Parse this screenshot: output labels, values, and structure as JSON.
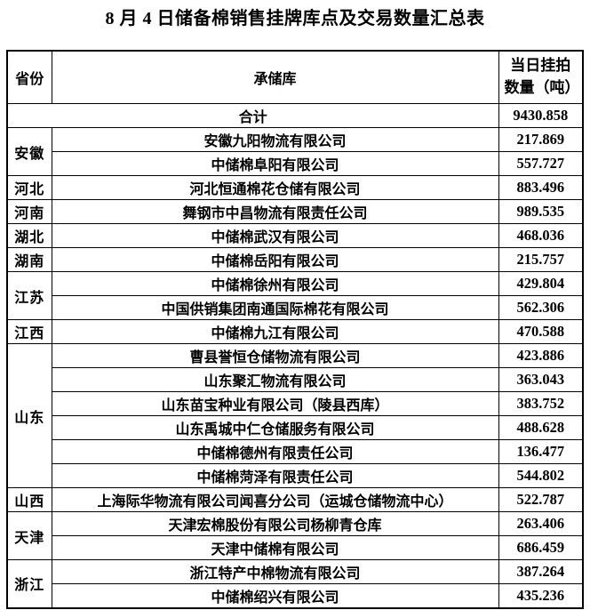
{
  "title": "8 月 4 日储备棉销售挂牌库点及交易数量汇总表",
  "table": {
    "headers": {
      "province": "省份",
      "warehouse": "承储库",
      "qty": "当日挂拍数量（吨）"
    },
    "total": {
      "label": "合计",
      "qty": "9430.858"
    },
    "groups": [
      {
        "province": "安徽",
        "entries": [
          {
            "name": "安徽九阳物流有限公司",
            "qty": "217.869"
          },
          {
            "name": "中储棉阜阳有限公司",
            "qty": "557.727"
          }
        ]
      },
      {
        "province": "河北",
        "entries": [
          {
            "name": "河北恒通棉花仓储有限公司",
            "qty": "883.496"
          }
        ]
      },
      {
        "province": "河南",
        "entries": [
          {
            "name": "舞钢市中昌物流有限责任公司",
            "qty": "989.535"
          }
        ]
      },
      {
        "province": "湖北",
        "entries": [
          {
            "name": "中储棉武汉有限公司",
            "qty": "468.036"
          }
        ]
      },
      {
        "province": "湖南",
        "entries": [
          {
            "name": "中储棉岳阳有限公司",
            "qty": "215.757"
          }
        ]
      },
      {
        "province": "江苏",
        "entries": [
          {
            "name": "中储棉徐州有限公司",
            "qty": "429.804"
          },
          {
            "name": "中国供销集团南通国际棉花有限公司",
            "qty": "562.306"
          }
        ]
      },
      {
        "province": "江西",
        "entries": [
          {
            "name": "中储棉九江有限公司",
            "qty": "470.588"
          }
        ]
      },
      {
        "province": "山东",
        "entries": [
          {
            "name": "曹县誉恒仓储物流有限公司",
            "qty": "423.886"
          },
          {
            "name": "山东聚汇物流有限公司",
            "qty": "363.043"
          },
          {
            "name": "山东苗宝种业有限公司（陵县西库）",
            "qty": "383.752"
          },
          {
            "name": "山东禹城中仁仓储服务有限公司",
            "qty": "488.628"
          },
          {
            "name": "中储棉德州有限责任公司",
            "qty": "136.477"
          },
          {
            "name": "中储棉菏泽有限责任公司",
            "qty": "544.802"
          }
        ]
      },
      {
        "province": "山西",
        "entries": [
          {
            "name": "上海际华物流有限公司闻喜分公司（运城仓储物流中心）",
            "qty": "522.787"
          }
        ]
      },
      {
        "province": "天津",
        "entries": [
          {
            "name": "天津宏棉股份有限公司杨柳青仓库",
            "qty": "263.406"
          },
          {
            "name": "天津中储棉有限公司",
            "qty": "686.459"
          }
        ]
      },
      {
        "province": "浙江",
        "entries": [
          {
            "name": "浙江特产中棉物流有限公司",
            "qty": "387.264"
          },
          {
            "name": "中储棉绍兴有限公司",
            "qty": "435.236"
          }
        ]
      }
    ]
  }
}
